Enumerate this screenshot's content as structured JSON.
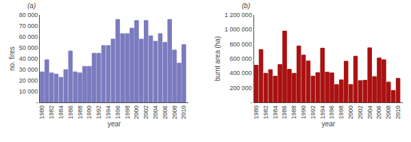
{
  "chart_data": [
    {
      "type": "bar",
      "x": [
        1980,
        1981,
        1982,
        1983,
        1984,
        1985,
        1986,
        1987,
        1988,
        1989,
        1990,
        1991,
        1992,
        1993,
        1994,
        1995,
        1996,
        1997,
        1998,
        1999,
        2000,
        2001,
        2002,
        2003,
        2004,
        2005,
        2006,
        2007,
        2008,
        2009,
        2010
      ],
      "values": [
        28000,
        39000,
        27000,
        26000,
        23000,
        30000,
        47000,
        28000,
        27000,
        33000,
        33000,
        45000,
        45000,
        52000,
        52000,
        58000,
        76000,
        63000,
        63000,
        68000,
        75000,
        58000,
        75000,
        61000,
        56000,
        63000,
        55000,
        76000,
        48000,
        36000,
        53000
      ],
      "color": "#7b7bbf",
      "xlabel": "year",
      "ylabel": "no. fires",
      "annotations": [
        "(a)"
      ],
      "xlim": [
        1979.5,
        2011
      ],
      "xticks": [
        1980,
        1982,
        1984,
        1986,
        1988,
        1990,
        1992,
        1994,
        1996,
        1998,
        2000,
        2002,
        2004,
        2006,
        2008,
        2010
      ],
      "ylim": [
        0,
        80000
      ],
      "yticks": [
        {
          "value": 0,
          "label": "-"
        },
        {
          "value": 10000,
          "label": "10 000"
        },
        {
          "value": 20000,
          "label": "20 000"
        },
        {
          "value": 30000,
          "label": "30 000"
        },
        {
          "value": 40000,
          "label": "40 000"
        },
        {
          "value": 50000,
          "label": "50 000"
        },
        {
          "value": 60000,
          "label": "60 000"
        },
        {
          "value": 70000,
          "label": "70 000"
        },
        {
          "value": 80000,
          "label": "80 000"
        }
      ],
      "grid": false
    },
    {
      "type": "bar",
      "x": [
        1980,
        1981,
        1982,
        1983,
        1984,
        1985,
        1986,
        1987,
        1988,
        1989,
        1990,
        1991,
        1992,
        1993,
        1994,
        1995,
        1996,
        1997,
        1998,
        1999,
        2000,
        2001,
        2002,
        2003,
        2004,
        2005,
        2006,
        2007,
        2008,
        2009,
        2010
      ],
      "values": [
        510000,
        725000,
        400000,
        450000,
        360000,
        520000,
        980000,
        455000,
        400000,
        775000,
        650000,
        570000,
        360000,
        410000,
        745000,
        415000,
        405000,
        245000,
        310000,
        565000,
        245000,
        635000,
        300000,
        305000,
        750000,
        355000,
        610000,
        585000,
        280000,
        165000,
        330000
      ],
      "color": "#aa1111",
      "xlabel": "year",
      "ylabel": "burnt area (ha)",
      "annotations": [
        "(b)"
      ],
      "xlim": [
        1979.5,
        2011
      ],
      "xticks": [
        1980,
        1982,
        1984,
        1986,
        1988,
        1990,
        1992,
        1994,
        1996,
        1998,
        2000,
        2002,
        2004,
        2006,
        2008,
        2010
      ],
      "ylim": [
        0,
        1200000
      ],
      "yticks": [
        {
          "value": 0,
          "label": "-"
        },
        {
          "value": 200000,
          "label": "200 000"
        },
        {
          "value": 400000,
          "label": "400 000"
        },
        {
          "value": 600000,
          "label": "600 000"
        },
        {
          "value": 800000,
          "label": "800 000"
        },
        {
          "value": 1000000,
          "label": "1 000 000"
        },
        {
          "value": 1200000,
          "label": "1 200 000"
        }
      ],
      "grid": false
    }
  ]
}
